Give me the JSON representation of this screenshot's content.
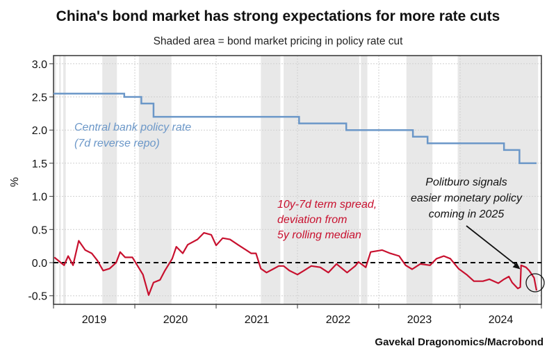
{
  "chart_data": {
    "type": "line",
    "title": "China's bond market has strong expectations for more rate cuts",
    "subtitle": "Shaded area = bond market pricing in policy rate cut",
    "ylabel": "%",
    "xlabel": "",
    "source": "Gavekal Dragonomics/Macrobond",
    "xlim": [
      2019.0,
      2025.0
    ],
    "ylim": [
      -0.6,
      3.1
    ],
    "yticks": [
      "3.0",
      "2.5",
      "2.0",
      "1.5",
      "1.0",
      "0.5",
      "0.0",
      "-0.5"
    ],
    "ytick_values": [
      3.0,
      2.5,
      2.0,
      1.5,
      1.0,
      0.5,
      0.0,
      -0.5
    ],
    "xtick_labels": [
      "2019",
      "2020",
      "2021",
      "2022",
      "2023",
      "2024"
    ],
    "grid": true,
    "shaded_periods": [
      [
        2019.0,
        2019.03
      ],
      [
        2019.07,
        2019.09
      ],
      [
        2019.12,
        2019.15
      ],
      [
        2019.6,
        2019.78
      ],
      [
        2020.05,
        2020.45
      ],
      [
        2021.55,
        2021.79
      ],
      [
        2021.83,
        2022.76
      ],
      [
        2022.78,
        2022.86
      ],
      [
        2023.34,
        2023.66
      ],
      [
        2023.97,
        2024.96
      ]
    ],
    "series": [
      {
        "name": "Central bank policy rate (7d reverse repo)",
        "label_lines": [
          "Central bank policy rate",
          "(7d reverse repo)"
        ],
        "color": "#6b97c8",
        "step": true,
        "x": [
          2019.0,
          2019.87,
          2020.08,
          2020.23,
          2022.02,
          2022.6,
          2023.42,
          2023.6,
          2024.54,
          2024.73,
          2024.94
        ],
        "y": [
          2.55,
          2.5,
          2.4,
          2.2,
          2.1,
          2.0,
          1.9,
          1.8,
          1.7,
          1.5,
          1.5
        ]
      },
      {
        "name": "10y-7d term spread, deviation from 5y rolling median",
        "label_lines": [
          "10y-7d term spread,",
          "deviation from",
          "5y rolling median"
        ],
        "color": "#c8102e",
        "x": [
          2019.01,
          2019.09,
          2019.13,
          2019.18,
          2019.24,
          2019.31,
          2019.39,
          2019.47,
          2019.54,
          2019.61,
          2019.69,
          2019.77,
          2019.82,
          2019.88,
          2019.97,
          2020.03,
          2020.1,
          2020.17,
          2020.23,
          2020.31,
          2020.37,
          2020.46,
          2020.51,
          2020.59,
          2020.65,
          2020.77,
          2020.85,
          2020.94,
          2021.0,
          2021.08,
          2021.17,
          2021.28,
          2021.37,
          2021.43,
          2021.49,
          2021.55,
          2021.62,
          2021.71,
          2021.77,
          2021.83,
          2021.9,
          2022.0,
          2022.08,
          2022.17,
          2022.28,
          2022.38,
          2022.48,
          2022.61,
          2022.71,
          2022.75,
          2022.84,
          2022.9,
          2023.04,
          2023.14,
          2023.25,
          2023.33,
          2023.41,
          2023.51,
          2023.63,
          2023.71,
          2023.8,
          2023.88,
          2023.98,
          2024.08,
          2024.17,
          2024.28,
          2024.36,
          2024.47,
          2024.54,
          2024.6,
          2024.64,
          2024.71,
          2024.74,
          2024.75,
          2024.81,
          2024.85,
          2024.91,
          2024.94
        ],
        "y": [
          0.08,
          0.0,
          -0.04,
          0.1,
          -0.04,
          0.33,
          0.19,
          0.14,
          0.03,
          -0.12,
          -0.09,
          0.0,
          0.16,
          0.08,
          0.08,
          -0.04,
          -0.18,
          -0.49,
          -0.3,
          -0.26,
          -0.12,
          0.06,
          0.24,
          0.14,
          0.27,
          0.35,
          0.45,
          0.42,
          0.26,
          0.37,
          0.35,
          0.26,
          0.19,
          0.14,
          0.14,
          -0.09,
          -0.15,
          -0.09,
          -0.05,
          -0.05,
          -0.12,
          -0.18,
          -0.12,
          -0.05,
          -0.07,
          -0.15,
          -0.02,
          -0.15,
          -0.05,
          0.01,
          -0.07,
          0.16,
          0.19,
          0.14,
          0.1,
          -0.04,
          -0.1,
          -0.02,
          -0.04,
          0.06,
          0.1,
          0.06,
          -0.09,
          -0.18,
          -0.28,
          -0.28,
          -0.25,
          -0.31,
          -0.25,
          -0.21,
          -0.3,
          -0.39,
          -0.37,
          -0.04,
          -0.07,
          -0.12,
          -0.23,
          -0.42
        ]
      }
    ],
    "annotations": [
      {
        "lines": [
          "Politburo signals",
          "easier monetary policy",
          "coming in 2025"
        ],
        "arrow_to": [
          2024.74,
          -0.1
        ]
      }
    ],
    "colors": {
      "shade": "#e8e8e8",
      "grid": "#cfcfcf",
      "zero_line": "#000000"
    }
  }
}
